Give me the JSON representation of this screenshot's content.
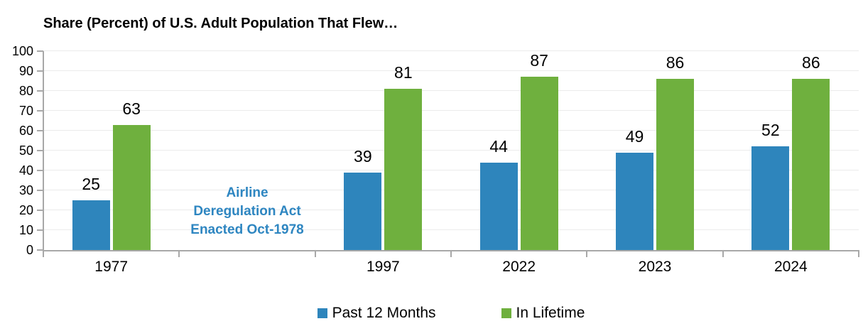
{
  "page": {
    "background": "#FFFFFF"
  },
  "chart": {
    "title": "Share (Percent) of U.S. Adult Population That Flew…",
    "annotation": {
      "lines": [
        "Airline",
        "Deregulation Act",
        "Enacted Oct-1978"
      ],
      "color": "#2E86C1"
    },
    "colors": {
      "grid": "#EBEBEB",
      "axis": "#A8A8A8",
      "text": "#000000",
      "series_blue": "#2E85BC",
      "series_green": "#6FB03E"
    }
  },
  "chart_data": {
    "type": "bar",
    "title": "Share (Percent) of U.S. Adult Population That Flew…",
    "categories": [
      "1977",
      "",
      "1997",
      "2022",
      "2023",
      "2024"
    ],
    "series": [
      {
        "name": "Past 12 Months",
        "color": "#2E85BC",
        "values": [
          25,
          null,
          39,
          44,
          49,
          52
        ]
      },
      {
        "name": "In Lifetime",
        "color": "#6FB03E",
        "values": [
          63,
          null,
          81,
          87,
          86,
          86
        ]
      }
    ],
    "ylim": [
      0,
      100
    ],
    "yticks": [
      0,
      10,
      20,
      30,
      40,
      50,
      60,
      70,
      80,
      90,
      100
    ],
    "xlabel": "",
    "ylabel": "",
    "grid": true,
    "bar_value_labels": true,
    "legend_position": "bottom",
    "annotation": "Airline Deregulation Act Enacted Oct-1978"
  }
}
